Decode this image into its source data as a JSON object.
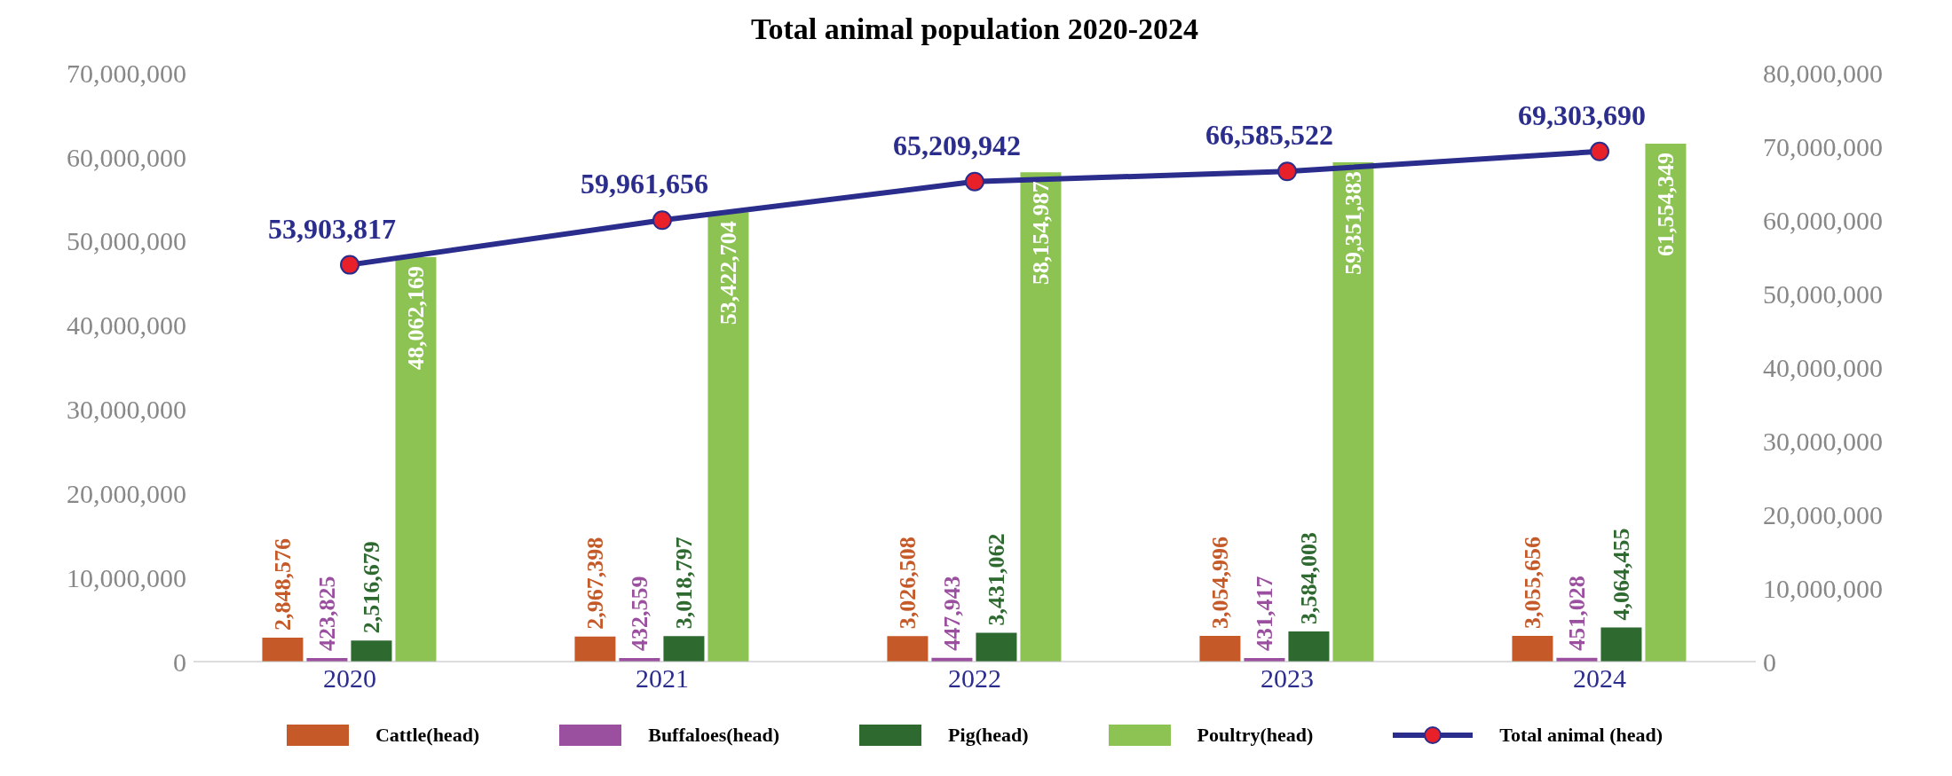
{
  "chart_data": {
    "type": "bar",
    "title": "Total animal population 2020-2024",
    "categories": [
      "2020",
      "2021",
      "2022",
      "2023",
      "2024"
    ],
    "series": [
      {
        "name": "Cattle(head)",
        "color": "#c55a28",
        "values": [
          2848576,
          2967398,
          3026508,
          3054996,
          3055656
        ],
        "value_labels": [
          "2,848,576",
          "2,967,398",
          "3,026,508",
          "3,054,996",
          "3,055,656"
        ]
      },
      {
        "name": "Buffaloes(head)",
        "color": "#9b4f9f",
        "values": [
          423825,
          432559,
          447943,
          431417,
          451028
        ],
        "value_labels": [
          "423,825",
          "432,559",
          "447,943",
          "431,417",
          "451,028"
        ]
      },
      {
        "name": "Pig(head)",
        "color": "#2e6a30",
        "values": [
          2516679,
          3018797,
          3431062,
          3584003,
          4064455
        ],
        "value_labels": [
          "2,516,679",
          "3,018,797",
          "3,431,062",
          "3,584,003",
          "4,064,455"
        ]
      },
      {
        "name": "Poultry(head)",
        "color": "#8dc352",
        "values": [
          48062169,
          53422704,
          58154987,
          59351383,
          61554349
        ],
        "value_labels": [
          "48,062,169",
          "53,422,704",
          "58,154,987",
          "59,351,383",
          "61,554,349"
        ]
      },
      {
        "name": "Total animal (head)",
        "type": "line",
        "axis": "y2",
        "color": "#2b2d8c",
        "values": [
          53903817,
          59961656,
          65209942,
          66585522,
          69303690
        ],
        "value_labels": [
          "53,903,817",
          "59,961,656",
          "65,209,942",
          "66,585,522",
          "69,303,690"
        ]
      }
    ],
    "ylim": [
      0,
      70000000
    ],
    "yticks": [
      0,
      {
        "value": 10000000,
        "label": "10,000,000"
      },
      {
        "value": 20000000,
        "label": "20,000,000"
      },
      {
        "value": 30000000,
        "label": "30,000,000"
      },
      {
        "value": 40000000,
        "label": "40,000,000"
      },
      {
        "value": 50000000,
        "label": "50,000,000"
      },
      {
        "value": 60000000,
        "label": "60,000,000"
      },
      {
        "value": 70000000,
        "label": "70,000,000"
      }
    ],
    "y2lim": [
      0,
      80000000
    ],
    "y2ticks": [
      0,
      {
        "value": 10000000,
        "label": "10,000,000"
      },
      {
        "value": 20000000,
        "label": "20,000,000"
      },
      {
        "value": 30000000,
        "label": "30,000,000"
      },
      {
        "value": 40000000,
        "label": "40,000,000"
      },
      {
        "value": 50000000,
        "label": "50,000,000"
      },
      {
        "value": 60000000,
        "label": "60,000,000"
      },
      {
        "value": 70000000,
        "label": "70,000,000"
      },
      {
        "value": 80000000,
        "label": "80,000,000"
      }
    ],
    "grid": false,
    "legend": "bottom",
    "marker": "circle"
  }
}
